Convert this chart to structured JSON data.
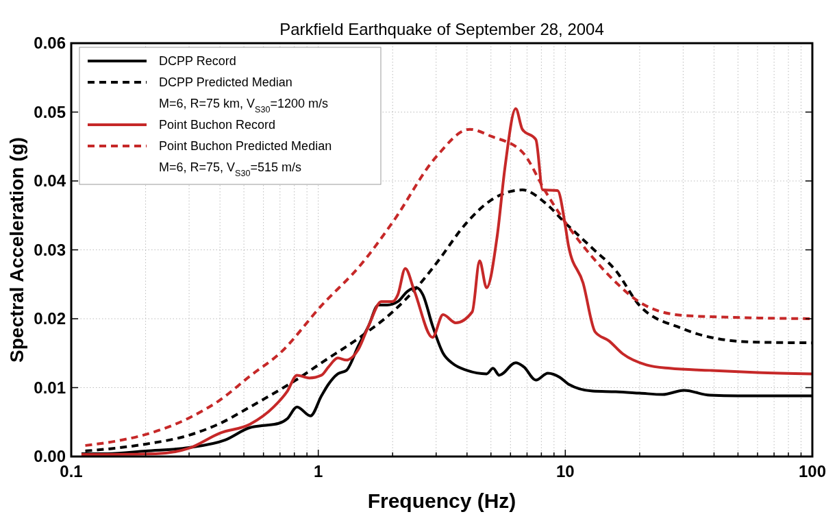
{
  "chart_data": {
    "type": "line",
    "title": "Parkfield Earthquake of September 28, 2004",
    "xlabel": "Frequency (Hz)",
    "ylabel": "Spectral Acceleration (g)",
    "log": "x",
    "grid": true,
    "legend": "top left",
    "xlim": [
      0.1,
      100
    ],
    "ylim": [
      0,
      0.06
    ],
    "xticks": [
      0.1,
      {
        "value": 0.2,
        "label": null
      },
      {
        "value": 0.3,
        "label": null
      },
      {
        "value": 0.4,
        "label": null
      },
      {
        "value": 0.5,
        "label": null
      },
      {
        "value": 0.6,
        "label": null
      },
      {
        "value": 0.7,
        "label": null
      },
      {
        "value": 0.8,
        "label": null
      },
      {
        "value": 0.9,
        "label": null
      },
      1,
      {
        "value": 2,
        "label": null
      },
      {
        "value": 3,
        "label": null
      },
      {
        "value": 4,
        "label": null
      },
      {
        "value": 5,
        "label": null
      },
      {
        "value": 6,
        "label": null
      },
      {
        "value": 7,
        "label": null
      },
      {
        "value": 8,
        "label": null
      },
      {
        "value": 9,
        "label": null
      },
      10,
      {
        "value": 20,
        "label": null
      },
      {
        "value": 30,
        "label": null
      },
      {
        "value": 40,
        "label": null
      },
      {
        "value": 50,
        "label": null
      },
      {
        "value": 60,
        "label": null
      },
      {
        "value": 70,
        "label": null
      },
      {
        "value": 80,
        "label": null
      },
      {
        "value": 90,
        "label": null
      },
      100
    ],
    "yticks": [
      {
        "value": 0,
        "label": "0.00"
      },
      {
        "value": 0.01,
        "label": "0.01"
      },
      {
        "value": 0.02,
        "label": "0.02"
      },
      {
        "value": 0.03,
        "label": "0.03"
      },
      {
        "value": 0.04,
        "label": "0.04"
      },
      {
        "value": 0.05,
        "label": "0.05"
      },
      {
        "value": 0.06,
        "label": "0.06"
      }
    ],
    "annotations": [
      "M=6, R=75 km, V$_{S30}$=1200 m/s",
      "M=6, R=75, V$_{S30}$=515 m/s"
    ],
    "series": [
      {
        "name": "DCPP Record",
        "color": "#000000",
        "line_style": "solid",
        "x": [
          0.11,
          0.14,
          0.2,
          0.3,
          0.42,
          0.53,
          0.6,
          0.69,
          0.75,
          0.82,
          0.93,
          1.03,
          1.1,
          1.2,
          1.3,
          1.45,
          1.6,
          1.75,
          1.9,
          2.1,
          2.3,
          2.5,
          2.65,
          2.9,
          3.2,
          3.5,
          4,
          4.8,
          5.1,
          5.4,
          6.3,
          6.8,
          7.6,
          8.5,
          9.5,
          10.3,
          12.9,
          16,
          20,
          24.8,
          30.2,
          38.5,
          50,
          70,
          100
        ],
        "values": [
          0.0004,
          0.0004,
          0.0008,
          0.0013,
          0.0024,
          0.0042,
          0.0045,
          0.0048,
          0.0055,
          0.0072,
          0.0059,
          0.0088,
          0.0105,
          0.012,
          0.0125,
          0.016,
          0.019,
          0.022,
          0.022,
          0.0225,
          0.024,
          0.0245,
          0.0235,
          0.019,
          0.015,
          0.0135,
          0.0125,
          0.012,
          0.0128,
          0.0118,
          0.0136,
          0.013,
          0.0111,
          0.0121,
          0.0115,
          0.0105,
          0.0095,
          0.0094,
          0.0092,
          0.009,
          0.0096,
          0.0089,
          0.0088,
          0.0088,
          0.0088
        ]
      },
      {
        "name": "DCPP Predicted Median",
        "color": "#000000",
        "line_style": "dashed",
        "x": [
          0.114,
          0.15,
          0.2,
          0.3,
          0.4,
          0.53,
          0.7,
          0.82,
          1.03,
          1.5,
          2,
          2.5,
          3,
          4,
          5,
          6.7,
          8.3,
          10,
          12.9,
          16,
          20,
          29.6,
          43,
          60,
          100
        ],
        "values": [
          0.0008,
          0.0012,
          0.0018,
          0.0031,
          0.0048,
          0.0072,
          0.0097,
          0.0112,
          0.0136,
          0.0175,
          0.021,
          0.0245,
          0.028,
          0.034,
          0.0372,
          0.0387,
          0.0368,
          0.0339,
          0.0302,
          0.027,
          0.0219,
          0.0186,
          0.017,
          0.0166,
          0.0165
        ]
      },
      {
        "name": "Point Buchon Record",
        "color": "#c62828",
        "line_style": "solid",
        "x": [
          0.11,
          0.15,
          0.22,
          0.3,
          0.4,
          0.53,
          0.66,
          0.75,
          0.82,
          0.92,
          1.03,
          1.1,
          1.2,
          1.3,
          1.45,
          1.6,
          1.8,
          2,
          2.1,
          2.25,
          2.45,
          2.9,
          3.2,
          3.6,
          4.2,
          4.5,
          4.8,
          5.3,
          5.7,
          6.3,
          6.7,
          7.6,
          8.1,
          9.3,
          10,
          10.3,
          11.8,
          13.2,
          15,
          17.1,
          21.3,
          26.5,
          38.5,
          60,
          100
        ],
        "values": [
          0.0003,
          0.0003,
          0.0004,
          0.0012,
          0.0034,
          0.0047,
          0.0072,
          0.0095,
          0.0118,
          0.0114,
          0.0118,
          0.013,
          0.0143,
          0.014,
          0.0155,
          0.019,
          0.0225,
          0.0225,
          0.0235,
          0.0273,
          0.024,
          0.0173,
          0.0206,
          0.0194,
          0.021,
          0.0284,
          0.0245,
          0.032,
          0.042,
          0.0505,
          0.0475,
          0.046,
          0.0387,
          0.0386,
          0.0335,
          0.0306,
          0.0252,
          0.0181,
          0.0168,
          0.0149,
          0.0133,
          0.0128,
          0.0125,
          0.0122,
          0.012
        ]
      },
      {
        "name": "Point Buchon Predicted Median",
        "color": "#c62828",
        "line_style": "dashed",
        "x": [
          0.114,
          0.15,
          0.2,
          0.3,
          0.4,
          0.53,
          0.7,
          1.03,
          1.5,
          2,
          3,
          4.1,
          5,
          6.7,
          8.3,
          10,
          12.9,
          16,
          20,
          29.6,
          48,
          100
        ],
        "values": [
          0.0016,
          0.0022,
          0.0032,
          0.0056,
          0.0082,
          0.0117,
          0.015,
          0.0219,
          0.028,
          0.034,
          0.0435,
          0.0475,
          0.0465,
          0.0442,
          0.0385,
          0.034,
          0.0289,
          0.0253,
          0.0224,
          0.0205,
          0.0202,
          0.02
        ]
      }
    ]
  }
}
